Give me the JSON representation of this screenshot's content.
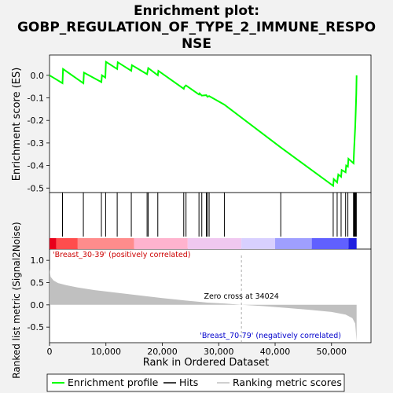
{
  "chart_data": {
    "type": "line",
    "title_line1": "Enrichment plot:",
    "title_line2": "GOBP_REGULATION_OF_TYPE_2_IMMUNE_RESPO",
    "title_line3": "NSE",
    "es_panel": {
      "ylabel": "Enrichment score (ES)",
      "ylim": [
        -0.52,
        0.09
      ],
      "yticks": [
        0.0,
        -0.1,
        -0.2,
        -0.3,
        -0.4,
        -0.5
      ],
      "ytick_labels": [
        "0.0",
        "-0.1",
        "-0.2",
        "-0.3",
        "-0.4",
        "-0.5"
      ],
      "line_color": "#00ff00",
      "profile": [
        [
          0,
          0.0
        ],
        [
          2300,
          -0.035
        ],
        [
          2400,
          0.028
        ],
        [
          6000,
          -0.035
        ],
        [
          6100,
          0.012
        ],
        [
          9200,
          -0.03
        ],
        [
          9300,
          0.0
        ],
        [
          9900,
          -0.01
        ],
        [
          10000,
          0.06
        ],
        [
          12000,
          0.028
        ],
        [
          12100,
          0.058
        ],
        [
          14500,
          0.02
        ],
        [
          14600,
          0.045
        ],
        [
          17300,
          0.005
        ],
        [
          17500,
          0.032
        ],
        [
          19200,
          0.0
        ],
        [
          19300,
          0.02
        ],
        [
          23800,
          -0.06
        ],
        [
          23900,
          -0.052
        ],
        [
          24200,
          -0.045
        ],
        [
          26500,
          -0.085
        ],
        [
          26600,
          -0.08
        ],
        [
          27000,
          -0.09
        ],
        [
          27800,
          -0.088
        ],
        [
          28000,
          -0.095
        ],
        [
          28300,
          -0.092
        ],
        [
          31000,
          -0.13
        ],
        [
          41000,
          -0.32
        ],
        [
          50300,
          -0.49
        ],
        [
          50400,
          -0.46
        ],
        [
          51000,
          -0.475
        ],
        [
          51200,
          -0.44
        ],
        [
          51700,
          -0.45
        ],
        [
          51800,
          -0.42
        ],
        [
          52500,
          -0.43
        ],
        [
          52600,
          -0.4
        ],
        [
          52900,
          -0.405
        ],
        [
          53000,
          -0.37
        ],
        [
          53900,
          -0.39
        ],
        [
          54000,
          -0.33
        ],
        [
          54100,
          -0.28
        ],
        [
          54200,
          -0.23
        ],
        [
          54300,
          -0.16
        ],
        [
          54400,
          -0.08
        ],
        [
          54450,
          0.0
        ]
      ]
    },
    "hits_panel": {
      "positions": [
        2300,
        6000,
        9200,
        9950,
        12000,
        14500,
        17300,
        17500,
        19200,
        23800,
        24200,
        26500,
        27000,
        27800,
        28000,
        28300,
        31000,
        41000,
        50300,
        51000,
        51700,
        52500,
        52900,
        53900,
        54000,
        54100,
        54200,
        54300,
        54400
      ],
      "bar_colors": [
        "#e8001a",
        "#ff4d4d",
        "#ff8c8c",
        "#ffb3ce",
        "#f0c8f0",
        "#d8d0ff",
        "#9f9fff",
        "#6060ff",
        "#2020e0"
      ],
      "pos_label": "'Breast_30-39' (positively correlated)",
      "neg_label": "'Breast_70-79' (negatively correlated)",
      "pos_label_color": "#cc0000",
      "neg_label_color": "#0000cc"
    },
    "metric_panel": {
      "ylabel": "Ranked list metric (Signal2Noise)",
      "xlabel": "Rank in Ordered Dataset",
      "ylim": [
        -0.85,
        1.25
      ],
      "yticks": [
        1.0,
        0.5,
        0.0,
        -0.5
      ],
      "ytick_labels": [
        "1.0",
        "0.5",
        "0.0",
        "-0.5"
      ],
      "xlim": [
        0,
        57000
      ],
      "xticks": [
        0,
        10000,
        20000,
        30000,
        40000,
        50000
      ],
      "xtick_labels": [
        "0",
        "10,000",
        "20,000",
        "30,000",
        "40,000",
        "50,000"
      ],
      "fill_color": "#c0c0c0",
      "zero_cross": 34024,
      "zero_cross_label": "Zero cross at 34024",
      "metric_curve": [
        [
          0,
          0.8
        ],
        [
          200,
          0.63
        ],
        [
          700,
          0.55
        ],
        [
          1500,
          0.49
        ],
        [
          3000,
          0.44
        ],
        [
          5000,
          0.39
        ],
        [
          8000,
          0.33
        ],
        [
          12000,
          0.27
        ],
        [
          16000,
          0.21
        ],
        [
          20000,
          0.15
        ],
        [
          24000,
          0.1
        ],
        [
          28000,
          0.05
        ],
        [
          31000,
          0.03
        ],
        [
          34024,
          0.0
        ],
        [
          38000,
          -0.03
        ],
        [
          42000,
          -0.07
        ],
        [
          46000,
          -0.11
        ],
        [
          50000,
          -0.16
        ],
        [
          52500,
          -0.22
        ],
        [
          53700,
          -0.3
        ],
        [
          54200,
          -0.42
        ],
        [
          54450,
          -0.82
        ]
      ]
    },
    "legend": {
      "items": [
        {
          "label": "Enrichment profile",
          "color": "#00ff00"
        },
        {
          "label": "Hits",
          "color": "#000000"
        },
        {
          "label": "Ranking metric scores",
          "color": "#c0c0c0"
        }
      ]
    }
  }
}
